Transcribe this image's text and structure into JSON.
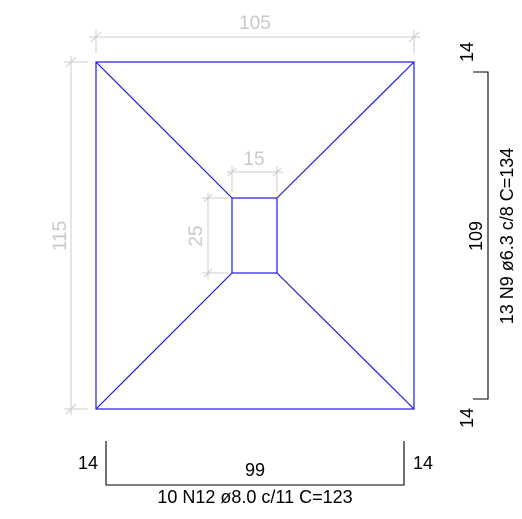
{
  "colors": {
    "outline": "#1a1ae6",
    "dimension": "#c8c8c8",
    "rebar": "#000000",
    "background": "#ffffff"
  },
  "dimensions": {
    "width": "105",
    "height": "115",
    "column_width": "15",
    "column_height": "25"
  },
  "rebar_vertical": {
    "top_hook": "14",
    "length": "109",
    "bottom_hook": "14",
    "spec": "13 N9 ø6.3 c/8  C=134"
  },
  "rebar_horizontal": {
    "left_hook": "14",
    "length": "99",
    "right_hook": "14",
    "spec": "10 N12 ø8.0 c/11  C=123"
  }
}
